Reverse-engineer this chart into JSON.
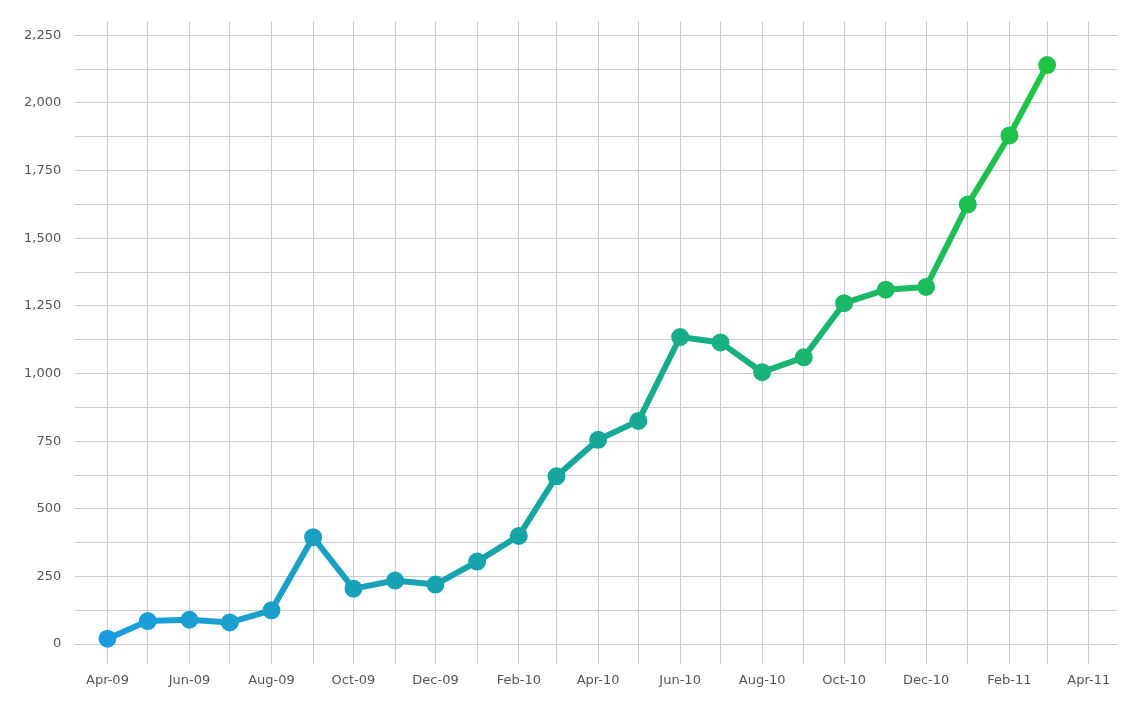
{
  "chart_data": {
    "type": "line",
    "x": [
      "2009-04",
      "2009-05",
      "2009-06",
      "2009-07",
      "2009-08",
      "2009-09",
      "2009-10",
      "2009-11",
      "2009-12",
      "2010-01",
      "2010-02",
      "2010-03",
      "2010-04",
      "2010-05",
      "2010-06",
      "2010-07",
      "2010-08",
      "2010-09",
      "2010-10",
      "2010-11",
      "2010-12",
      "2011-01",
      "2011-02",
      "2011-03"
    ],
    "series": [
      {
        "values": [
          20,
          85,
          90,
          80,
          125,
          395,
          205,
          235,
          220,
          305,
          400,
          620,
          755,
          825,
          1135,
          1115,
          1005,
          1060,
          1260,
          1310,
          1320,
          1625,
          1880,
          2140
        ],
        "colors": [
          "#1b9ce0",
          "#1b9dda",
          "#1b9ed4",
          "#1a9fce",
          "#1aa0c8",
          "#1aa0c2",
          "#19a1bc",
          "#19a2b6",
          "#18a3b0",
          "#18a4aa",
          "#17a5a4",
          "#17a69f",
          "#16a79a",
          "#17aa92",
          "#17ac8a",
          "#18af82",
          "#19b27a",
          "#1ab472",
          "#1bb76a",
          "#1bba62",
          "#1cbc5a",
          "#1dbf52",
          "#1ec24b",
          "#1fc447"
        ]
      }
    ],
    "xlim": [
      "2009-03-08",
      "2011-04-22"
    ],
    "xticks": [
      {
        "value": "2009-04",
        "label": "Apr-09"
      },
      {
        "value": "2009-05",
        "label": null
      },
      {
        "value": "2009-06",
        "label": "Jun-09"
      },
      {
        "value": "2009-07",
        "label": null
      },
      {
        "value": "2009-08",
        "label": "Aug-09"
      },
      {
        "value": "2009-09",
        "label": null
      },
      {
        "value": "2009-10",
        "label": "Oct-09"
      },
      {
        "value": "2009-11",
        "label": null
      },
      {
        "value": "2009-12",
        "label": "Dec-09"
      },
      {
        "value": "2010-01",
        "label": null
      },
      {
        "value": "2010-02",
        "label": "Feb-10"
      },
      {
        "value": "2010-03",
        "label": null
      },
      {
        "value": "2010-04",
        "label": "Apr-10"
      },
      {
        "value": "2010-05",
        "label": null
      },
      {
        "value": "2010-06",
        "label": "Jun-10"
      },
      {
        "value": "2010-07",
        "label": null
      },
      {
        "value": "2010-08",
        "label": "Aug-10"
      },
      {
        "value": "2010-09",
        "label": null
      },
      {
        "value": "2010-10",
        "label": "Oct-10"
      },
      {
        "value": "2010-11",
        "label": null
      },
      {
        "value": "2010-12",
        "label": "Dec-10"
      },
      {
        "value": "2011-01",
        "label": null
      },
      {
        "value": "2011-02",
        "label": "Feb-11"
      },
      {
        "value": "2011-03",
        "label": null
      },
      {
        "value": "2011-04",
        "label": "Apr-11"
      }
    ],
    "ylim": [
      -75,
      2300
    ],
    "yticks": [
      0,
      {
        "value": 125,
        "label": null
      },
      {
        "value": 250,
        "label": "250"
      },
      {
        "value": 375,
        "label": null
      },
      {
        "value": 500,
        "label": "500"
      },
      {
        "value": 625,
        "label": null
      },
      {
        "value": 750,
        "label": "750"
      },
      {
        "value": 875,
        "label": null
      },
      {
        "value": 1000,
        "label": "1,000"
      },
      {
        "value": 1125,
        "label": null
      },
      {
        "value": 1250,
        "label": "1,250"
      },
      {
        "value": 1375,
        "label": null
      },
      {
        "value": 1500,
        "label": "1,500"
      },
      {
        "value": 1625,
        "label": null
      },
      {
        "value": 1750,
        "label": "1,750"
      },
      {
        "value": 1875,
        "label": null
      },
      {
        "value": 2000,
        "label": "2,000"
      },
      {
        "value": 2125,
        "label": null
      },
      {
        "value": 2250,
        "label": "2,250"
      }
    ],
    "grid": true,
    "marker": "circle",
    "line_style": "solid",
    "legend": false
  }
}
